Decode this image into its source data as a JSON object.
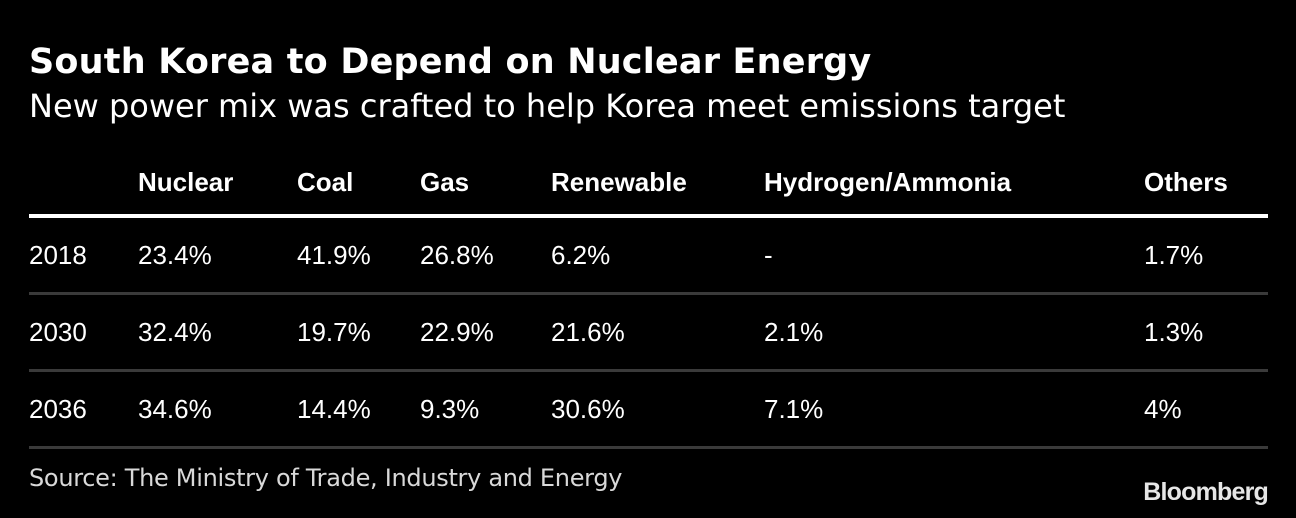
{
  "header": {
    "title": "South Korea to Depend on Nuclear Energy",
    "subtitle": "New power mix was crafted to help Korea meet emissions target"
  },
  "table": {
    "columns": [
      "",
      "Nuclear",
      "Coal",
      "Gas",
      "Renewable",
      "Hydrogen/Ammonia",
      "Others"
    ],
    "rows": [
      [
        "2018",
        "23.4%",
        "41.9%",
        "26.8%",
        "6.2%",
        "-",
        "1.7%"
      ],
      [
        "2030",
        "32.4%",
        "19.7%",
        "22.9%",
        "21.6%",
        "2.1%",
        "1.3%"
      ],
      [
        "2036",
        "34.6%",
        "14.4%",
        "9.3%",
        "30.6%",
        "7.1%",
        "4%"
      ]
    ]
  },
  "footer": {
    "source": "Source: The Ministry of Trade, Industry and Energy",
    "brand": "Bloomberg"
  },
  "colors": {
    "background": "#000000",
    "text": "#ffffff",
    "header_rule": "#ffffff",
    "row_rule": "#3a3a3a"
  },
  "chart_data": {
    "type": "table",
    "title": "South Korea to Depend on Nuclear Energy",
    "subtitle": "New power mix was crafted to help Korea meet emissions target",
    "categories": [
      "2018",
      "2030",
      "2036"
    ],
    "series": [
      {
        "name": "Nuclear",
        "values": [
          23.4,
          32.4,
          34.6
        ]
      },
      {
        "name": "Coal",
        "values": [
          41.9,
          19.7,
          14.4
        ]
      },
      {
        "name": "Gas",
        "values": [
          26.8,
          22.9,
          9.3
        ]
      },
      {
        "name": "Renewable",
        "values": [
          6.2,
          21.6,
          30.6
        ]
      },
      {
        "name": "Hydrogen/Ammonia",
        "values": [
          null,
          2.1,
          7.1
        ]
      },
      {
        "name": "Others",
        "values": [
          1.7,
          1.3,
          4
        ]
      }
    ],
    "unit": "%",
    "source": "Source: The Ministry of Trade, Industry and Energy"
  }
}
